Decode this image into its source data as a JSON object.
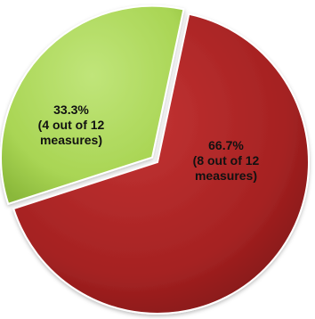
{
  "chart_data": {
    "type": "pie",
    "slices": [
      {
        "value": 66.7,
        "color": "#a52222",
        "label_lines": [
          "66.7%",
          "(8 out of 12",
          "measures)"
        ]
      },
      {
        "value": 33.3,
        "color": "#aed85b",
        "label_lines": [
          "33.3%",
          "(4 out of 12",
          "measures)"
        ]
      }
    ],
    "legend": "none",
    "grid": false
  }
}
